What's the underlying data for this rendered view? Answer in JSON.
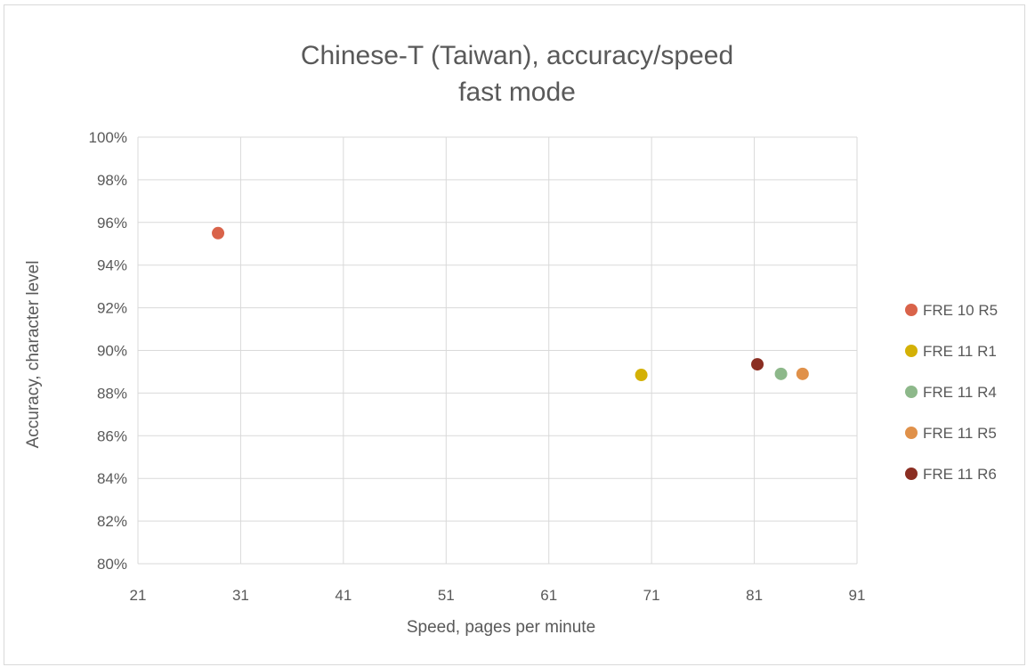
{
  "chart_data": {
    "type": "scatter",
    "title": "Chinese-T (Taiwan), accuracy/speed",
    "subtitle": "fast mode",
    "xlabel": "Speed, pages per minute",
    "ylabel": "Accuracy, character level",
    "xlim": [
      21,
      91
    ],
    "ylim": [
      0.8,
      1.0
    ],
    "x_ticks": [
      "21",
      "31",
      "41",
      "51",
      "61",
      "71",
      "81",
      "91"
    ],
    "y_ticks": [
      "80%",
      "82%",
      "84%",
      "86%",
      "88%",
      "90%",
      "92%",
      "94%",
      "96%",
      "98%",
      "100%"
    ],
    "grid": true,
    "legend_position": "right",
    "series": [
      {
        "name": "FRE 10 R5",
        "color": "#d9634a",
        "x": 28.8,
        "y": 0.955
      },
      {
        "name": "FRE 11 R1",
        "color": "#d4b106",
        "x": 70.0,
        "y": 0.8885
      },
      {
        "name": "FRE 11 R4",
        "color": "#8db88a",
        "x": 83.6,
        "y": 0.889
      },
      {
        "name": "FRE 11 R5",
        "color": "#e0914a",
        "x": 85.7,
        "y": 0.889
      },
      {
        "name": "FRE 11 R6",
        "color": "#8b2e22",
        "x": 81.3,
        "y": 0.8935
      }
    ]
  }
}
